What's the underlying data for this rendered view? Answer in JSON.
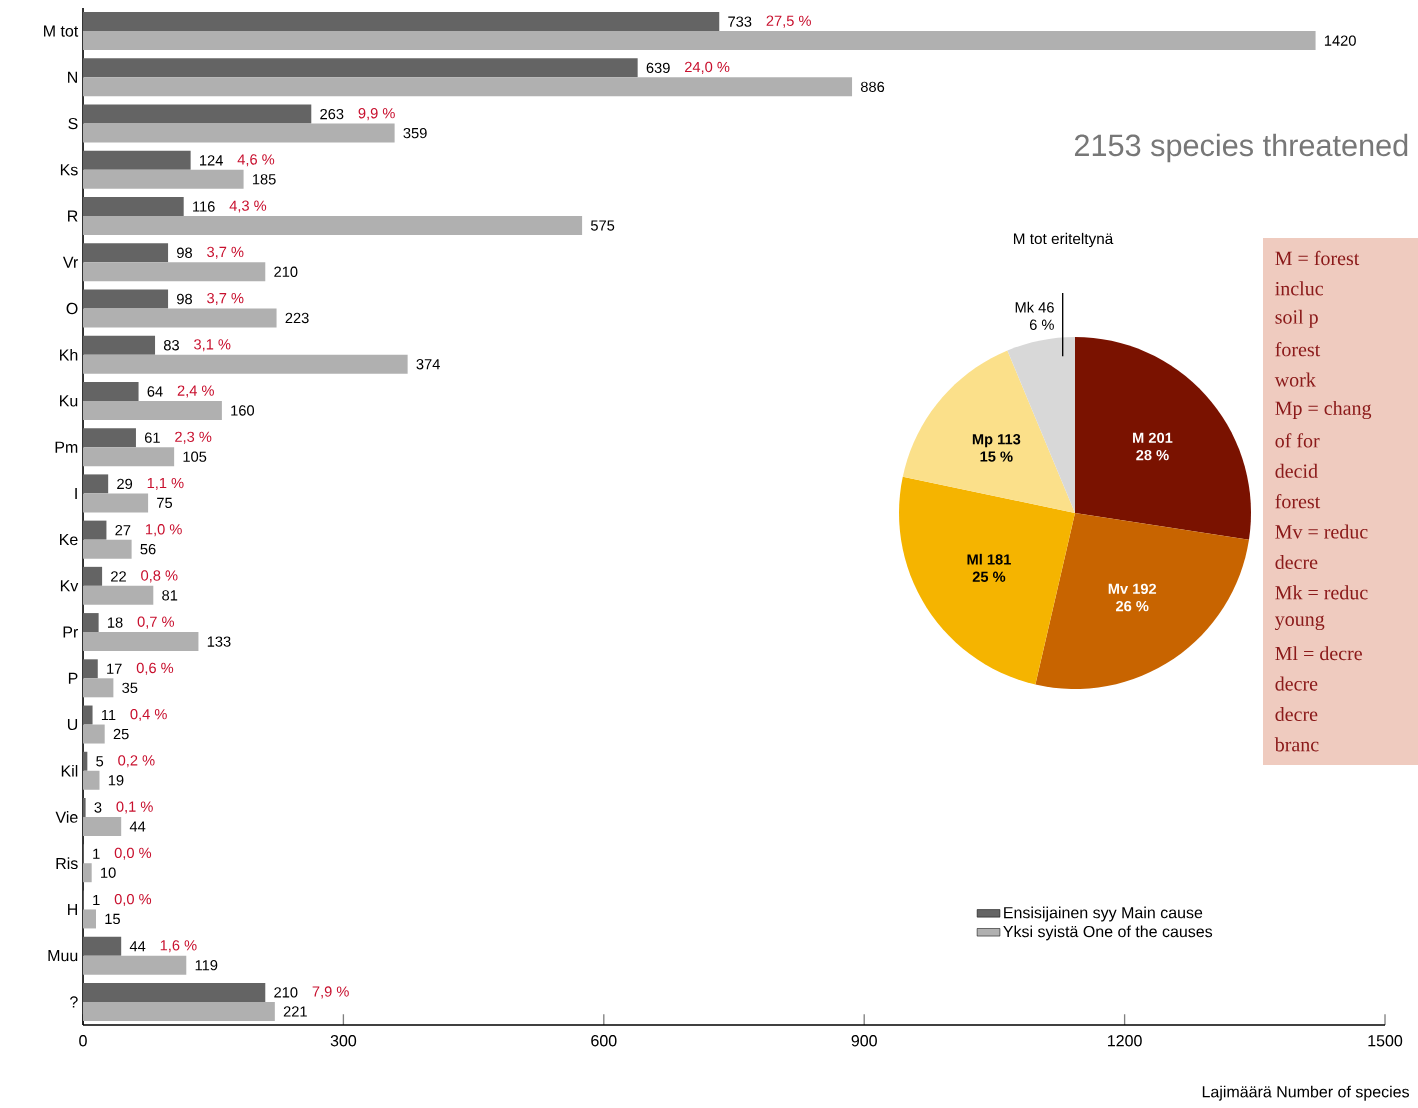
{
  "chart_data": [
    {
      "type": "bar",
      "orientation": "horizontal",
      "title": "2153 species threatened",
      "xlabel": "Lajimäärä Number of species",
      "categories": [
        "M tot",
        "N",
        "S",
        "Ks",
        "R",
        "Vr",
        "O",
        "Kh",
        "Ku",
        "Pm",
        "I",
        "Ke",
        "Kv",
        "Pr",
        "P",
        "U",
        "Kil",
        "Vie",
        "Ris",
        "H",
        "Muu",
        "?"
      ],
      "series": [
        {
          "name": "Ensisijainen syy Main cause",
          "color": "#646464",
          "values": [
            733,
            639,
            263,
            124,
            116,
            98,
            98,
            83,
            64,
            61,
            29,
            27,
            22,
            18,
            17,
            11,
            5,
            3,
            1,
            1,
            44,
            210
          ]
        },
        {
          "name": "Yksi syistä One of the causes",
          "color": "#b0b0b0",
          "values": [
            1420,
            886,
            359,
            185,
            575,
            210,
            223,
            374,
            160,
            105,
            75,
            56,
            81,
            133,
            35,
            25,
            19,
            44,
            10,
            15,
            119,
            221
          ]
        }
      ],
      "annotations": [
        "27,5 %",
        "24,0 %",
        "9,9 %",
        "4,6 %",
        "4,3 %",
        "3,7 %",
        "3,7 %",
        "3,1 %",
        "2,4 %",
        "2,3 %",
        "1,1 %",
        "1,0 %",
        "0,8 %",
        "0,7 %",
        "0,6 %",
        "0,4 %",
        "0,2 %",
        "0,1 %",
        "0,0 %",
        "0,0 %",
        "1,6 %",
        "7,9 %"
      ],
      "xlim": [
        0,
        1500
      ],
      "xticks": [
        0,
        300,
        600,
        900,
        1200,
        1500
      ],
      "data_labels": true,
      "legend": "bottom right"
    },
    {
      "type": "pie",
      "title": "M tot eriteltynä",
      "categories": [
        "M",
        "Mv",
        "Ml",
        "Mp",
        "Mk"
      ],
      "values": [
        201,
        192,
        181,
        113,
        46
      ],
      "colors": [
        "#7a1200",
        "#c86400",
        "#f5b400",
        "#fbe08a",
        "#d8d8d8"
      ],
      "data_labels": true,
      "annotations": [
        "28 %",
        "26 %",
        "25 %",
        "15 %",
        "6 %"
      ]
    },
    {
      "type": "other",
      "annotations": [
        "M = forest",
        "incluc",
        "soil p",
        "forest",
        "work",
        "Mp = chang",
        "of for",
        "decid",
        "forest",
        "Mv = reduc",
        "decre",
        "Mk = reduc",
        "young",
        "Ml = decre",
        "decre",
        "decre",
        "branc"
      ]
    }
  ]
}
